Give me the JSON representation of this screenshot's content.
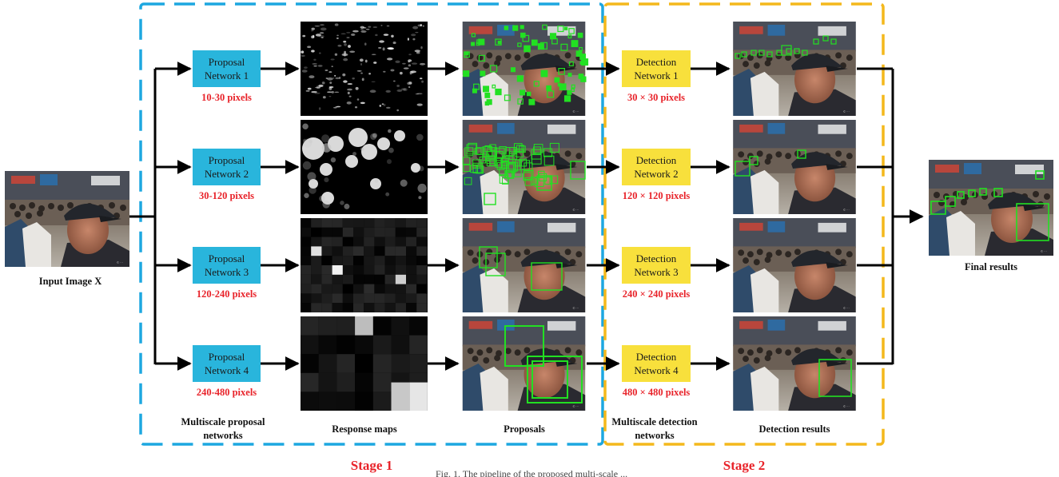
{
  "input_label": "Input Image X",
  "final_label": "Final results",
  "proposal_networks": [
    {
      "line1": "Proposal",
      "line2": "Network 1",
      "range": "10-30 pixels"
    },
    {
      "line1": "Proposal",
      "line2": "Network 2",
      "range": "30-120 pixels"
    },
    {
      "line1": "Proposal",
      "line2": "Network 3",
      "range": "120-240 pixels"
    },
    {
      "line1": "Proposal",
      "line2": "Network 4",
      "range": "240-480 pixels"
    }
  ],
  "detection_networks": [
    {
      "line1": "Detection",
      "line2": "Network 1",
      "size": "30 × 30 pixels"
    },
    {
      "line1": "Detection",
      "line2": "Network 2",
      "size": "120 × 120 pixels"
    },
    {
      "line1": "Detection",
      "line2": "Network 3",
      "size": "240 × 240 pixels"
    },
    {
      "line1": "Detection",
      "line2": "Network 4",
      "size": "480 × 480 pixels"
    }
  ],
  "column_captions": {
    "proposal_networks_1": "Multiscale proposal",
    "proposal_networks_2": "networks",
    "response_maps": "Response maps",
    "proposals": "Proposals",
    "detection_networks_1": "Multiscale detection",
    "detection_networks_2": "networks",
    "detection_results": "Detection results"
  },
  "stages": {
    "stage1": "Stage 1",
    "stage2": "Stage 2"
  },
  "figure_caption": "Fig. 1. The pipeline of the proposed multi-scale ...",
  "colors": {
    "proposal_box": "#29b5dc",
    "detection_box": "#f8e03c",
    "stage1_border": "#1da7e0",
    "stage2_border": "#f4b81c",
    "accent_red": "#e8232a",
    "detection_green": "#22e022"
  }
}
